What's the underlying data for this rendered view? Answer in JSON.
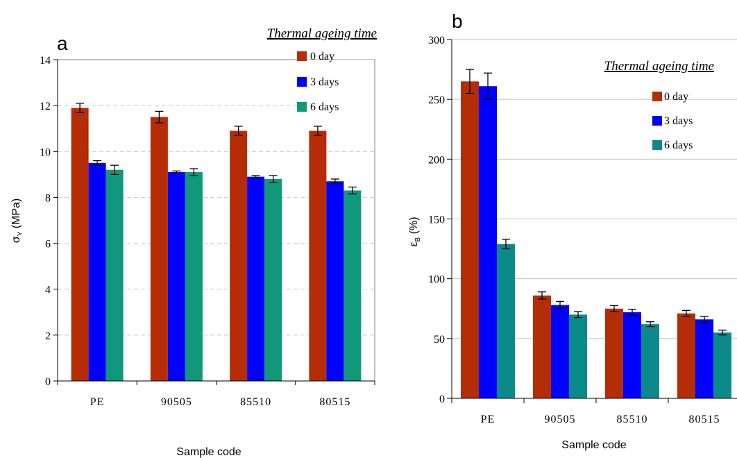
{
  "chart_data": [
    {
      "panel_letter": "a",
      "type": "bar",
      "title": "",
      "legend_title": "Thermal ageing time",
      "xlabel": "Sample code",
      "ylabel_main": "σ",
      "ylabel_sub": "Y",
      "ylabel_unit": " (MPa)",
      "categories": [
        "PE",
        "90505",
        "85510",
        "80515"
      ],
      "ylim": [
        0,
        14
      ],
      "yticks": [
        "0",
        "2",
        "4",
        "6",
        "8",
        "10",
        "12",
        "14"
      ],
      "grid": "horizontal dashed",
      "legend_position": "top-right",
      "series": [
        {
          "name": "0 day",
          "color": "#b52d07",
          "values": [
            11.9,
            11.5,
            10.9,
            10.9
          ],
          "errors": [
            0.2,
            0.25,
            0.2,
            0.2
          ]
        },
        {
          "name": "3 days",
          "color": "#0000ff",
          "values": [
            9.5,
            9.1,
            8.9,
            8.7
          ],
          "errors": [
            0.1,
            0.05,
            0.05,
            0.1
          ]
        },
        {
          "name": "6 days",
          "color": "#11987a",
          "values": [
            9.2,
            9.1,
            8.8,
            8.3
          ],
          "errors": [
            0.2,
            0.15,
            0.15,
            0.15
          ]
        }
      ]
    },
    {
      "panel_letter": "b",
      "type": "bar",
      "title": "",
      "legend_title": "Thermal ageing time",
      "xlabel": "Sample code",
      "ylabel_main": "ε",
      "ylabel_sub": "B",
      "ylabel_unit": " (%)",
      "categories": [
        "PE",
        "90505",
        "85510",
        "80515"
      ],
      "ylim": [
        0,
        300
      ],
      "yticks": [
        "0",
        "50",
        "100",
        "150",
        "200",
        "250",
        "300"
      ],
      "grid": "horizontal solid",
      "legend_position": "top-right",
      "series": [
        {
          "name": "0 day",
          "color": "#b52d07",
          "values": [
            265,
            86,
            75,
            71
          ],
          "errors": [
            10,
            3,
            2.5,
            2.5
          ]
        },
        {
          "name": "3 days",
          "color": "#0000ff",
          "values": [
            261,
            78,
            72,
            66
          ],
          "errors": [
            11,
            3,
            2.5,
            2.5
          ]
        },
        {
          "name": "6 days",
          "color": "#0c8a8a",
          "values": [
            129,
            70,
            62,
            55
          ],
          "errors": [
            4,
            2.5,
            2,
            2
          ]
        }
      ]
    }
  ]
}
